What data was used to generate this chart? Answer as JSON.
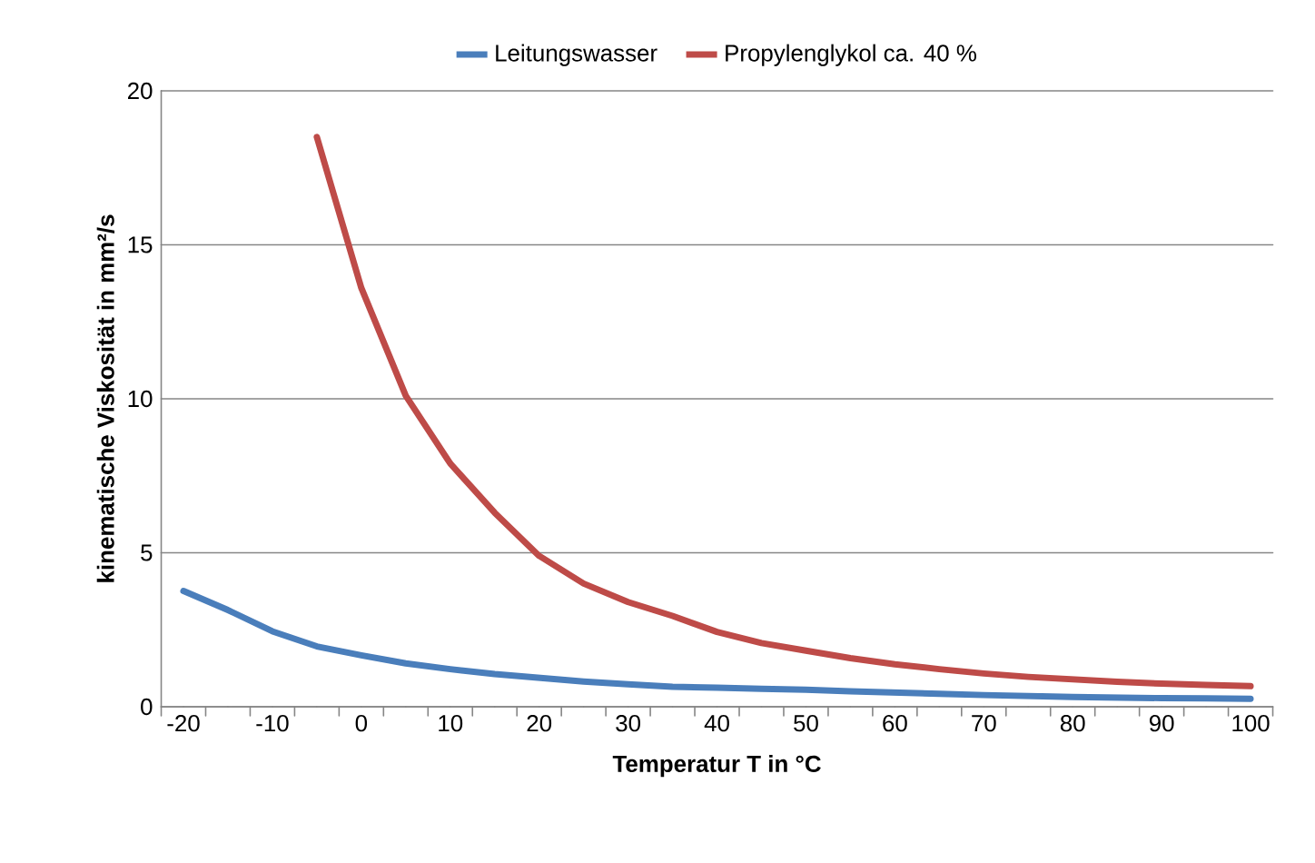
{
  "chart_data": {
    "type": "line",
    "xlabel": "Temperatur T in °C",
    "ylabel": "kinematische Viskosität in mm²/s",
    "categories": [
      "-20",
      null,
      "-10",
      null,
      "0",
      null,
      "10",
      null,
      "20",
      null,
      "30",
      null,
      "40",
      null,
      "50",
      null,
      "60",
      null,
      "70",
      null,
      "80",
      null,
      "90",
      null,
      "100"
    ],
    "series": [
      {
        "name": "Leitungswasser",
        "color": "#4a7ebb",
        "values": [
          3.76,
          3.14,
          2.45,
          1.96,
          1.67,
          1.41,
          1.22,
          1.06,
          0.94,
          0.82,
          0.73,
          0.65,
          0.62,
          0.58,
          0.55,
          0.5,
          0.46,
          0.42,
          0.38,
          0.35,
          0.32,
          0.3,
          0.28,
          0.27,
          0.26
        ]
      },
      {
        "name": "Propylenglykol ca. 40 %",
        "color": "#be4b48",
        "values": [
          null,
          null,
          null,
          18.5,
          13.6,
          10.1,
          7.9,
          6.3,
          4.9,
          4.0,
          3.4,
          2.95,
          2.43,
          2.07,
          1.82,
          1.58,
          1.38,
          1.22,
          1.08,
          0.97,
          0.89,
          0.81,
          0.75,
          0.71,
          0.67
        ]
      }
    ],
    "ylim": [
      0,
      20
    ],
    "yticks": [
      0,
      5,
      10,
      15,
      20
    ],
    "grid": "y",
    "legend": "top",
    "marker": "none",
    "line_style": "solid"
  }
}
